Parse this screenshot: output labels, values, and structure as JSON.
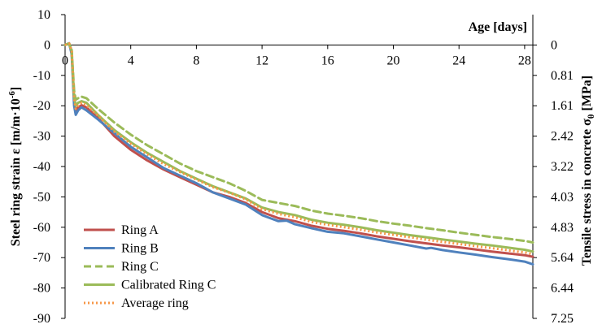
{
  "chart_data": {
    "type": "line",
    "x_axis": {
      "label": "Age [days]",
      "range": [
        0,
        28.5
      ],
      "ticks": [
        0,
        4,
        8,
        12,
        16,
        20,
        24,
        28
      ],
      "tick_labels": [
        "0",
        "4",
        "8",
        "12",
        "16",
        "20",
        "24",
        "28"
      ],
      "position": "at y = 0"
    },
    "y_axis_left": {
      "label_parts": [
        "Steel ring strain  ",
        "ε",
        " [m/m·10",
        "-6",
        "]"
      ],
      "range": [
        -90,
        10
      ],
      "ticks": [
        10,
        0,
        -10,
        -20,
        -30,
        -40,
        -50,
        -60,
        -70,
        -80,
        -90
      ],
      "tick_labels": [
        "10",
        "0",
        "-10",
        "-20",
        "-30",
        "-40",
        "-50",
        "-60",
        "-70",
        "-80",
        "-90"
      ]
    },
    "y_axis_right": {
      "label_parts": [
        "Tensile stress in concrete  ",
        "σ",
        "θ",
        " [MPa]"
      ],
      "tick_values_on_left_scale": [
        0,
        -10,
        -20,
        -30,
        -40,
        -50,
        -60,
        -70,
        -80,
        -90
      ],
      "tick_labels": [
        "0",
        "0.81",
        "1.61",
        "2.42",
        "3.22",
        "4.03",
        "4.83",
        "5.64",
        "6.44",
        "7.25"
      ]
    },
    "grid": false,
    "legend_position": "bottom-left",
    "series": [
      {
        "name": "Ring A",
        "color": "#c0504d",
        "dash": "solid",
        "x": [
          0,
          0.25,
          0.4,
          0.55,
          0.65,
          0.8,
          1.0,
          1.3,
          2,
          3,
          4,
          5,
          6,
          7,
          8,
          9,
          10,
          11,
          12,
          13,
          14,
          15,
          16,
          17,
          18,
          19,
          20,
          21,
          22,
          23,
          24,
          25,
          26,
          27,
          28,
          28.5
        ],
        "y": [
          0,
          0.5,
          -2,
          -18,
          -21.5,
          -20.5,
          -19.8,
          -20.5,
          -24,
          -30,
          -34.5,
          -38,
          -41,
          -43.5,
          -46,
          -48.5,
          -50,
          -52,
          -55,
          -57,
          -58,
          -59.5,
          -60.5,
          -61.2,
          -62,
          -63,
          -63.8,
          -64.6,
          -65.3,
          -66,
          -66.6,
          -67.3,
          -68,
          -68.6,
          -69.2,
          -69.7
        ]
      },
      {
        "name": "Ring B",
        "color": "#4f81bd",
        "dash": "solid",
        "x": [
          0,
          0.25,
          0.4,
          0.55,
          0.65,
          0.8,
          1.0,
          1.3,
          2,
          3,
          4,
          5,
          6,
          7,
          8,
          9,
          10,
          11,
          12,
          12.5,
          13,
          13.5,
          14,
          15,
          16,
          17,
          18,
          19,
          20,
          21,
          22,
          22.3,
          23,
          24,
          25,
          26,
          27,
          28,
          28.5
        ],
        "y": [
          0,
          0.6,
          -3,
          -20,
          -23,
          -21.5,
          -20.5,
          -21.5,
          -24.5,
          -29,
          -33.5,
          -37,
          -40.5,
          -43,
          -45.5,
          -48.5,
          -50.5,
          -52.5,
          -56,
          -57,
          -58,
          -57.8,
          -59,
          -60.3,
          -61.5,
          -62,
          -63,
          -64,
          -65,
          -66,
          -67,
          -66.8,
          -67.5,
          -68.3,
          -69,
          -69.8,
          -70.5,
          -71.3,
          -72.2
        ]
      },
      {
        "name": "Ring C",
        "color": "#9bbb59",
        "dash": "dashed",
        "x": [
          0,
          0.25,
          0.4,
          0.55,
          0.65,
          0.8,
          1.0,
          1.3,
          2,
          3,
          4,
          5,
          6,
          7,
          8,
          9,
          10,
          11,
          12,
          13,
          14,
          15,
          16,
          17,
          18,
          19,
          20,
          21,
          22,
          23,
          24,
          25,
          26,
          27,
          28,
          28.5
        ],
        "y": [
          0,
          0.5,
          -1.5,
          -15,
          -18,
          -17.5,
          -17,
          -17.5,
          -21,
          -25.5,
          -29.5,
          -33,
          -36,
          -39,
          -41.5,
          -43.5,
          -45.5,
          -48,
          -51,
          -52,
          -53,
          -54.5,
          -55.5,
          -56.2,
          -57,
          -58,
          -58.8,
          -59.5,
          -60.3,
          -61,
          -61.8,
          -62.5,
          -63.2,
          -63.8,
          -64.5,
          -65
        ]
      },
      {
        "name": "Calibrated Ring C",
        "color": "#9bbb59",
        "dash": "solid",
        "x": [
          0,
          0.25,
          0.4,
          0.55,
          0.65,
          0.8,
          1.0,
          1.3,
          2,
          3,
          4,
          5,
          6,
          7,
          8,
          9,
          10,
          11,
          12,
          13,
          14,
          15,
          16,
          17,
          18,
          19,
          20,
          21,
          22,
          23,
          24,
          25,
          26,
          27,
          28,
          28.5
        ],
        "y": [
          0,
          0.5,
          -2,
          -17,
          -20,
          -19,
          -18.5,
          -19,
          -23,
          -28,
          -32,
          -35.5,
          -38.5,
          -41.5,
          -44,
          -46.5,
          -48.5,
          -50.5,
          -53.5,
          -55,
          -56,
          -57.5,
          -58.5,
          -59.2,
          -60,
          -61,
          -61.8,
          -62.6,
          -63.3,
          -64,
          -64.7,
          -65.4,
          -66,
          -66.7,
          -67.4,
          -68
        ]
      },
      {
        "name": "Average ring",
        "color": "#f79646",
        "dash": "dotted",
        "x": [
          0,
          0.25,
          0.4,
          0.55,
          0.65,
          0.8,
          1.0,
          1.3,
          2,
          3,
          4,
          5,
          6,
          7,
          8,
          9,
          10,
          11,
          12,
          13,
          14,
          15,
          16,
          17,
          18,
          19,
          20,
          21,
          22,
          23,
          24,
          25,
          26,
          27,
          28,
          28.5
        ],
        "y": [
          0,
          0.5,
          -2,
          -17.5,
          -21,
          -20,
          -19,
          -19.8,
          -23.2,
          -28.5,
          -32.5,
          -36,
          -39.2,
          -41.8,
          -44.3,
          -46.8,
          -48.6,
          -50.8,
          -54,
          -55.6,
          -56.7,
          -58.2,
          -59.2,
          -60,
          -60.8,
          -61.7,
          -62.5,
          -63.3,
          -64.1,
          -64.8,
          -65.5,
          -66.2,
          -66.9,
          -67.6,
          -68.3,
          -68.9
        ]
      }
    ]
  }
}
